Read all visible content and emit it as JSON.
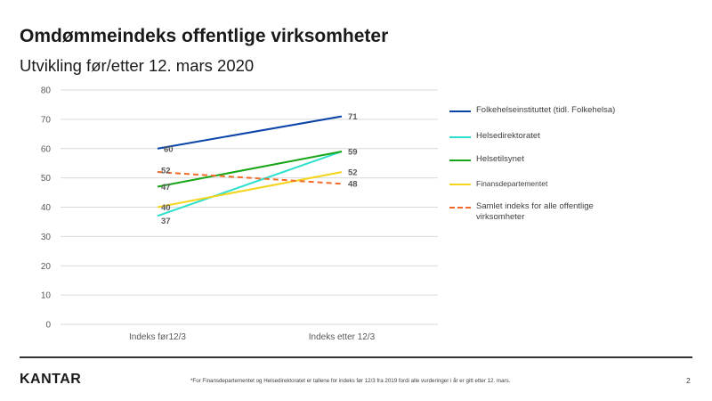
{
  "header": {
    "title": "Omdømmeindeks offentlige virksomheter",
    "subtitle": "Utvikling før/etter 12. mars 2020"
  },
  "chart_data": {
    "type": "line",
    "categories": [
      "Indeks før12/3",
      "Indeks etter 12/3"
    ],
    "ylim": [
      0,
      80
    ],
    "yticks": [
      0,
      10,
      20,
      30,
      40,
      50,
      60,
      70,
      80
    ],
    "grid": true,
    "legend_position": "right",
    "series": [
      {
        "name": "Folkehelseinstituttet (tidl. Folkehelsa)",
        "values": [
          60,
          71
        ],
        "labels": [
          "60",
          "71"
        ],
        "color": "#0a44a8",
        "dashed": false
      },
      {
        "name": "Helsedirektoratet",
        "values": [
          37,
          59
        ],
        "labels": [
          "37",
          "59"
        ],
        "color": "#2de0cc",
        "dashed": false
      },
      {
        "name": "Helsetilsynet",
        "values": [
          47,
          59
        ],
        "labels": [
          "47",
          ""
        ],
        "color": "#16a516",
        "dashed": false
      },
      {
        "name": "Finansdepartementet",
        "values": [
          40,
          52
        ],
        "labels": [
          "40",
          "52"
        ],
        "color": "#f5d51b",
        "dashed": false
      },
      {
        "name": "Samlet indeks for alle offentlige virksomheter",
        "values": [
          52,
          48
        ],
        "labels": [
          "52",
          "48"
        ],
        "color": "#f26b2a",
        "dashed": true
      }
    ]
  },
  "legend": {
    "items": [
      {
        "label": "Folkehelseinstituttet (tidl. Folkehelsa)",
        "color": "#0a44a8",
        "dashed": false
      },
      {
        "label": "Helsedirektoratet",
        "color": "#2de0cc",
        "dashed": false
      },
      {
        "label": "Helsetilsynet",
        "color": "#16a516",
        "dashed": false
      },
      {
        "label": "Finansdepartementet",
        "color": "#f5d51b",
        "dashed": false
      },
      {
        "label": "Samlet indeks for alle offentlige virksomheter",
        "color": "#f26b2a",
        "dashed": true
      }
    ]
  },
  "footer": {
    "logo": "KANTAR",
    "footnote": "*For Finansdepartementet  og Helsedirektoratet  er tallene for indeks før 12/3 fra 2019 fordi alle vurderinger  i år er gitt etter 12. mars.",
    "page_number": "2"
  }
}
